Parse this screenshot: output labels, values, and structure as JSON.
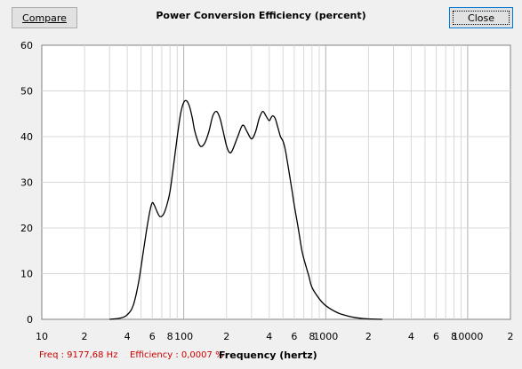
{
  "toolbar": {
    "compare_label": "Compare",
    "close_label": "Close"
  },
  "chart_title": "Power Conversion Efficiency (percent)",
  "status": {
    "freq_text": "Freq : 9177,68 Hz",
    "efficiency_text": "Efficiency : 0,0007 %",
    "xlabel": "Frequency (hertz)"
  },
  "colors": {
    "background": "#f0f0f0",
    "plot_bg": "#ffffff",
    "grid": "#d0d0d0",
    "curve": "#000000",
    "status_red": "#cc0000"
  },
  "chart_data": {
    "type": "line",
    "title": "Power Conversion Efficiency (percent)",
    "xlabel": "Frequency (hertz)",
    "ylabel": "",
    "xscale": "log",
    "xlim": [
      10,
      20000
    ],
    "ylim": [
      0,
      60
    ],
    "grid": true,
    "y_ticks": [
      0,
      10,
      20,
      30,
      40,
      50,
      60
    ],
    "x_ticks": [
      {
        "v": 10,
        "label": "10"
      },
      {
        "v": 20,
        "label": "2"
      },
      {
        "v": 40,
        "label": "4"
      },
      {
        "v": 60,
        "label": "6"
      },
      {
        "v": 80,
        "label": "8"
      },
      {
        "v": 100,
        "label": "100"
      },
      {
        "v": 200,
        "label": "2"
      },
      {
        "v": 400,
        "label": "4"
      },
      {
        "v": 600,
        "label": "6"
      },
      {
        "v": 800,
        "label": "8"
      },
      {
        "v": 1000,
        "label": "1000"
      },
      {
        "v": 2000,
        "label": "2"
      },
      {
        "v": 4000,
        "label": "4"
      },
      {
        "v": 6000,
        "label": "6"
      },
      {
        "v": 8000,
        "label": "8"
      },
      {
        "v": 10000,
        "label": "10000"
      },
      {
        "v": 20000,
        "label": "2"
      }
    ],
    "series": [
      {
        "x": [
          30,
          36,
          40,
          44,
          48,
          52,
          55,
          58,
          60,
          62,
          65,
          68,
          72,
          76,
          80,
          85,
          90,
          95,
          100,
          105,
          110,
          115,
          120,
          130,
          140,
          150,
          160,
          170,
          180,
          190,
          200,
          210,
          220,
          240,
          260,
          280,
          300,
          320,
          340,
          360,
          380,
          400,
          420,
          440,
          460,
          480,
          500,
          520,
          540,
          560,
          580,
          600,
          640,
          680,
          720,
          760,
          800,
          900,
          1000,
          1200,
          1400,
          1600,
          1800,
          2000,
          2200,
          2500
        ],
        "y": [
          0,
          0.3,
          1,
          3,
          8,
          15,
          20,
          24,
          25.5,
          25,
          23.5,
          22.5,
          23,
          25,
          28,
          34,
          40,
          45,
          47.5,
          47.8,
          46.5,
          44,
          41,
          38,
          38.5,
          41,
          44.5,
          45.5,
          44,
          41,
          38,
          36.5,
          37,
          40,
          42.5,
          41,
          39.5,
          41,
          44,
          45.5,
          44.5,
          43.5,
          44.5,
          44,
          42,
          40,
          39,
          37,
          34,
          31,
          28,
          25,
          20,
          15,
          12,
          9.5,
          7,
          4.5,
          3,
          1.5,
          0.8,
          0.4,
          0.2,
          0.1,
          0.05,
          0
        ]
      }
    ]
  }
}
